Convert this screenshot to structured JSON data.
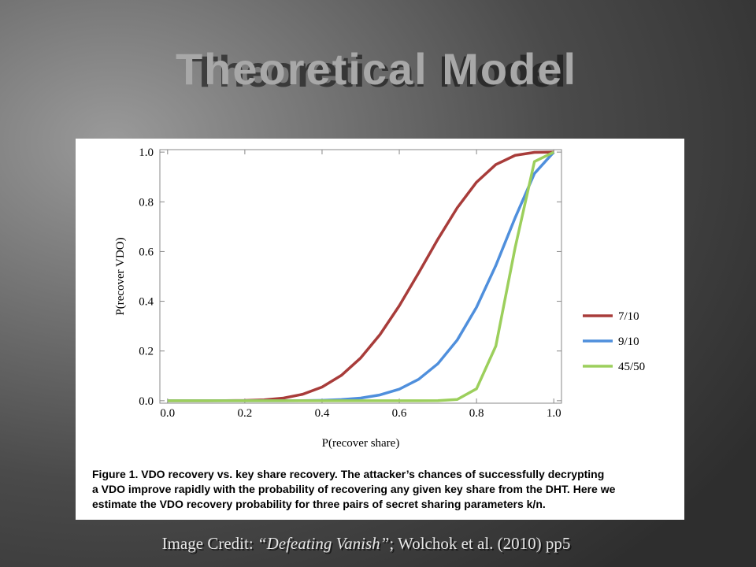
{
  "slide": {
    "title": "Theoretical Model",
    "credit": [
      "Image Credit: ",
      "“Defeating Vanish”",
      "; Wolchok et al. (2010) pp5"
    ]
  },
  "chart_data": {
    "type": "line",
    "xlabel": "P(recover share)",
    "ylabel": "P(recover VDO)",
    "caption": [
      "Figure 1. VDO recovery vs.  key share recovery.   The attacker’s chances of successfully decrypting",
      "a VDO improve rapidly with the probability of recovering any given key share from the DHT. Here we",
      "estimate the VDO recovery probability for three pairs of secret sharing parameters k/n."
    ],
    "x": [
      0,
      0.05,
      0.1,
      0.15,
      0.2,
      0.25,
      0.3,
      0.35,
      0.4,
      0.45,
      0.5,
      0.55,
      0.6,
      0.65,
      0.7,
      0.75,
      0.8,
      0.85,
      0.9,
      0.95,
      1.0
    ],
    "series": [
      {
        "name": "7/10",
        "color": "#a83c3a",
        "values": [
          0,
          0,
          0,
          0.0001,
          0.0009,
          0.0035,
          0.0106,
          0.026,
          0.055,
          0.102,
          0.172,
          0.266,
          0.382,
          0.514,
          0.65,
          0.776,
          0.879,
          0.95,
          0.987,
          0.999,
          1
        ]
      },
      {
        "name": "9/10",
        "color": "#4f8fdc",
        "values": [
          0,
          0,
          0,
          0,
          0,
          0,
          0,
          0.0003,
          0.0016,
          0.0045,
          0.0107,
          0.0233,
          0.0464,
          0.086,
          0.149,
          0.244,
          0.376,
          0.544,
          0.736,
          0.914,
          1
        ]
      },
      {
        "name": "45/50",
        "color": "#9ccf5c",
        "values": [
          0,
          0,
          0,
          0,
          0,
          0,
          0,
          0,
          0,
          0,
          0,
          0,
          0,
          0,
          0.0002,
          0.005,
          0.048,
          0.22,
          0.616,
          0.962,
          1
        ]
      }
    ],
    "xlim": [
      -0.02,
      1.02
    ],
    "ylim": [
      -0.01,
      1.01
    ],
    "xticks": [
      {
        "value": 0,
        "label": "0.0"
      },
      0.2,
      0.4,
      0.6,
      0.8,
      {
        "value": 1,
        "label": "1.0"
      }
    ],
    "yticks": [
      {
        "value": 0,
        "label": "0.0"
      },
      0.2,
      0.4,
      0.6,
      0.8,
      {
        "value": 1,
        "label": "1.0"
      }
    ],
    "grid": false,
    "legend": "right"
  }
}
